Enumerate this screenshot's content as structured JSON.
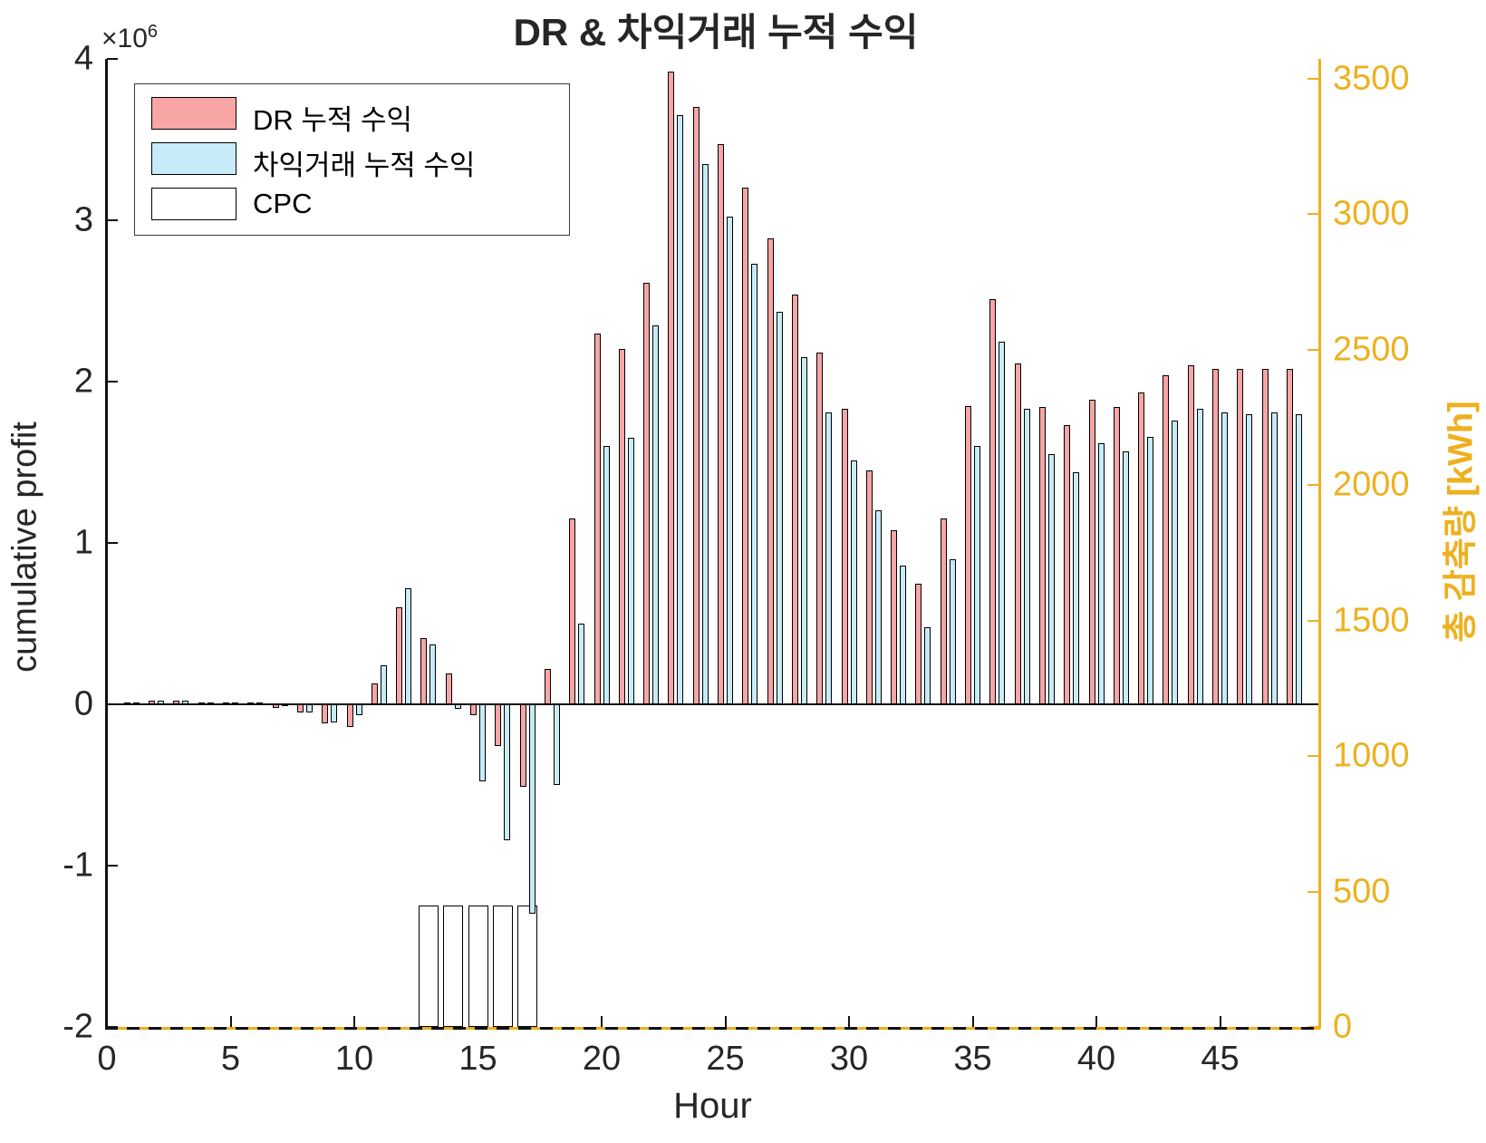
{
  "title": "DR & 차익거래 누적 수익",
  "axes": {
    "x": {
      "label": "Hour",
      "ticks": [
        0,
        5,
        10,
        15,
        20,
        25,
        30,
        35,
        40,
        45
      ],
      "min": 0,
      "max": 49
    },
    "y_left": {
      "label": "cumulative profit",
      "scale_multiplier": "×10",
      "scale_exponent": "6",
      "ticks": [
        4,
        3,
        2,
        1,
        0,
        -1,
        -2
      ],
      "min": -2000000,
      "max": 4000000,
      "color": "#262626"
    },
    "y_right": {
      "label": "총 감축량 [kWh]",
      "ticks": [
        3500,
        3000,
        2500,
        2000,
        1500,
        1000,
        500,
        0
      ],
      "min": 0,
      "max": 3500,
      "color": "#EDB120"
    }
  },
  "legend": {
    "position": "top-left",
    "entries": [
      {
        "label": "DR 누적 수익",
        "color": "#F8A5A5"
      },
      {
        "label": "차익거래 누적 수익",
        "color": "#C7EBF8"
      },
      {
        "label": "CPC",
        "color": "#FFFFFF"
      }
    ]
  },
  "chart_data": {
    "type": "bar",
    "grid": false,
    "x": [
      1,
      2,
      3,
      4,
      5,
      6,
      7,
      8,
      9,
      10,
      11,
      12,
      13,
      14,
      15,
      16,
      17,
      18,
      19,
      20,
      21,
      22,
      23,
      24,
      25,
      26,
      27,
      28,
      29,
      30,
      31,
      32,
      33,
      34,
      35,
      36,
      37,
      38,
      39,
      40,
      41,
      42,
      43,
      44,
      45,
      46,
      47,
      48
    ],
    "series": [
      {
        "name": "DR 누적 수익",
        "axis": "left",
        "unit": "x1e6 profit",
        "color": "#F8A5A5",
        "values": [
          0.01,
          0.02,
          0.02,
          0.01,
          0.01,
          0.01,
          -0.02,
          -0.05,
          -0.12,
          -0.14,
          0.13,
          0.6,
          0.41,
          0.19,
          -0.07,
          -0.26,
          -0.51,
          0.22,
          1.15,
          2.3,
          2.2,
          2.61,
          3.92,
          3.7,
          3.47,
          3.2,
          2.89,
          2.54,
          2.18,
          1.83,
          1.45,
          1.08,
          0.75,
          1.15,
          1.85,
          2.51,
          2.11,
          1.84,
          1.73,
          1.89,
          1.84,
          1.93,
          2.04,
          2.1,
          2.08,
          2.08,
          2.08,
          2.08
        ]
      },
      {
        "name": "차익거래 누적 수익",
        "axis": "left",
        "unit": "x1e6 profit",
        "color": "#C7EBF8",
        "values": [
          0.01,
          0.02,
          0.02,
          0.01,
          0.01,
          0.01,
          -0.01,
          -0.05,
          -0.11,
          -0.07,
          0.24,
          0.72,
          0.37,
          -0.03,
          -0.48,
          -0.84,
          -1.3,
          -0.5,
          0.5,
          1.6,
          1.65,
          2.35,
          3.65,
          3.35,
          3.02,
          2.73,
          2.43,
          2.15,
          1.81,
          1.51,
          1.2,
          0.86,
          0.48,
          0.9,
          1.6,
          2.25,
          1.83,
          1.55,
          1.44,
          1.62,
          1.57,
          1.66,
          1.76,
          1.83,
          1.81,
          1.8,
          1.81,
          1.8
        ]
      },
      {
        "name": "CPC",
        "axis": "right",
        "unit": "kWh",
        "color": "#FFFFFF",
        "values": [
          0,
          0,
          0,
          0,
          0,
          0,
          0,
          0,
          0,
          0,
          0,
          0,
          450,
          450,
          450,
          450,
          450,
          0,
          0,
          0,
          0,
          0,
          0,
          0,
          0,
          0,
          0,
          0,
          0,
          0,
          0,
          0,
          0,
          0,
          0,
          0,
          0,
          0,
          0,
          0,
          0,
          0,
          0,
          0,
          0,
          0,
          0,
          0
        ]
      }
    ]
  }
}
